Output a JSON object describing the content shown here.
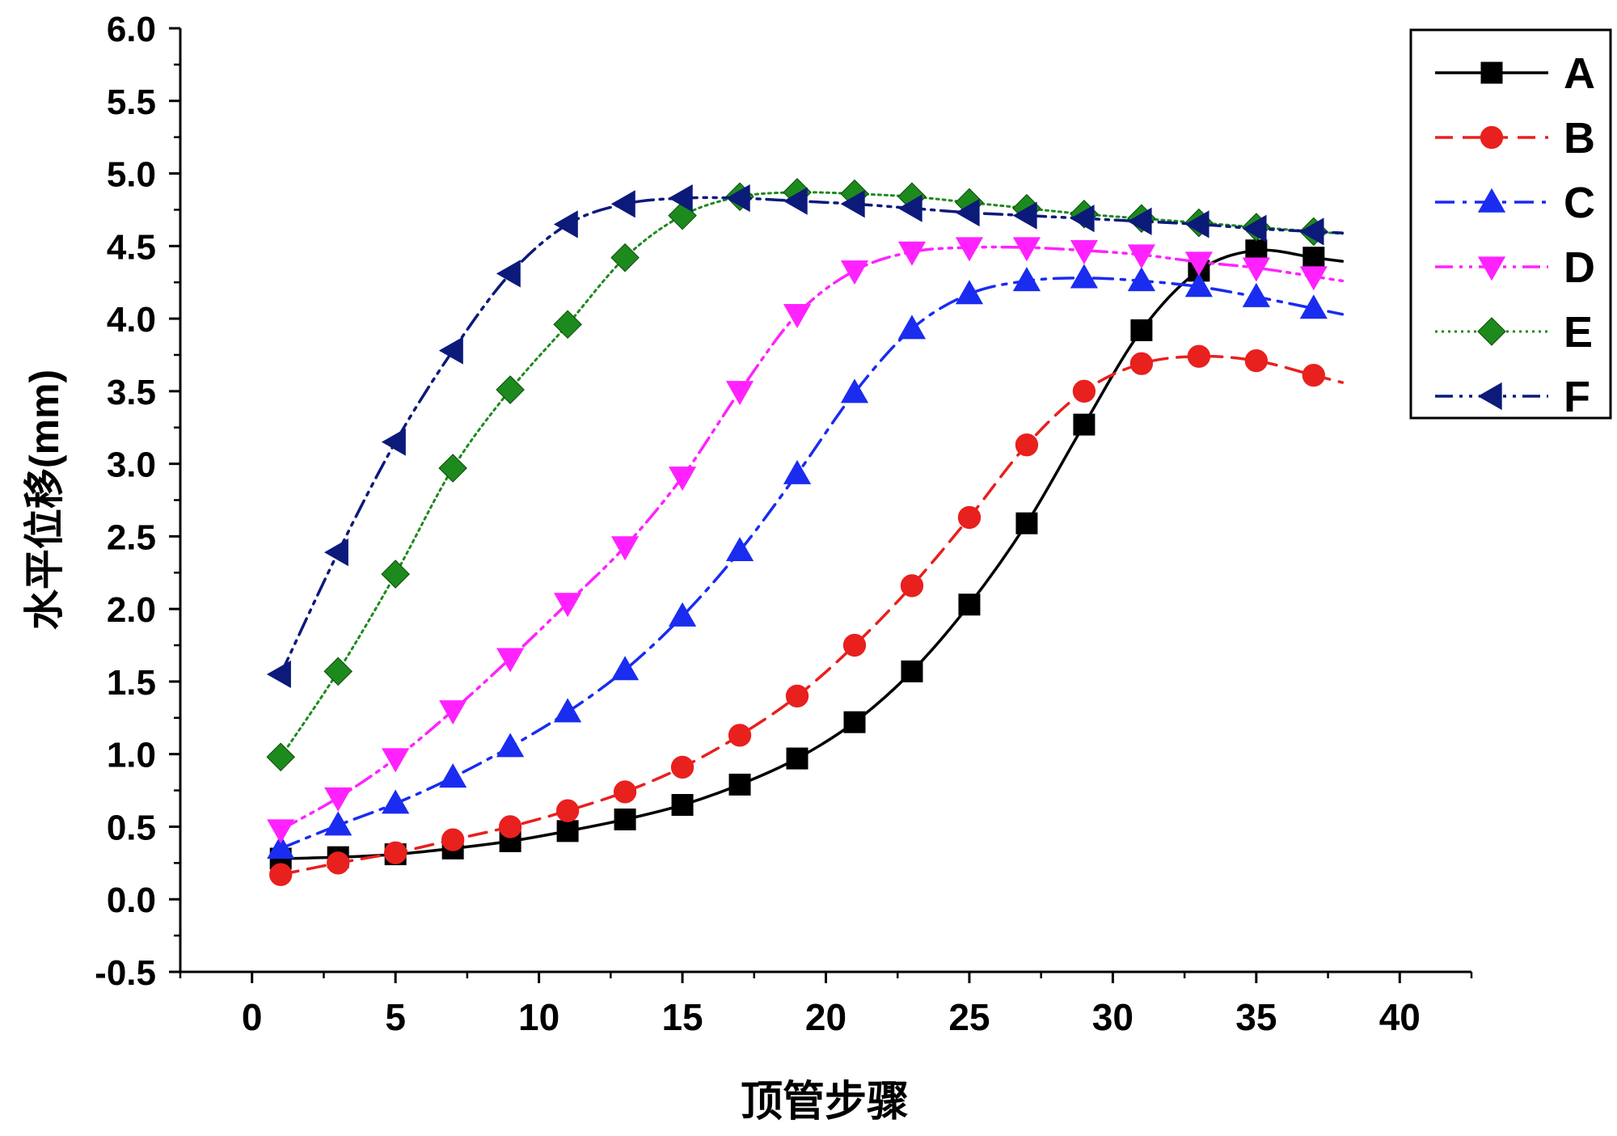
{
  "chart_data": {
    "type": "line",
    "title": "",
    "xlabel": "顶管步骤",
    "ylabel": "水平位移(mm)",
    "xlim": [
      -2.5,
      42.5
    ],
    "ylim": [
      -0.5,
      6.0
    ],
    "xticks": [
      0,
      5,
      10,
      15,
      20,
      25,
      30,
      35,
      40
    ],
    "yticks": [
      -0.5,
      0.0,
      0.5,
      1.0,
      1.5,
      2.0,
      2.5,
      3.0,
      3.5,
      4.0,
      4.5,
      5.0,
      5.5,
      6.0
    ],
    "x": [
      1,
      3,
      5,
      7,
      9,
      11,
      13,
      15,
      17,
      19,
      21,
      23,
      25,
      27,
      29,
      31,
      33,
      35,
      37
    ],
    "legend_position": "top-right",
    "series": [
      {
        "name": "A",
        "color": "#000000",
        "marker": "square",
        "dash": "solid",
        "values": [
          0.28,
          0.29,
          0.31,
          0.35,
          0.4,
          0.47,
          0.55,
          0.65,
          0.79,
          0.97,
          1.22,
          1.57,
          2.03,
          2.59,
          3.27,
          3.92,
          4.33,
          4.47,
          4.42
        ]
      },
      {
        "name": "B",
        "color": "#e8201e",
        "marker": "circle",
        "dash": "dash",
        "values": [
          0.17,
          0.25,
          0.32,
          0.41,
          0.5,
          0.61,
          0.74,
          0.91,
          1.13,
          1.4,
          1.75,
          2.16,
          2.63,
          3.13,
          3.5,
          3.69,
          3.74,
          3.71,
          3.61
        ]
      },
      {
        "name": "C",
        "color": "#1a2cf0",
        "marker": "triangle-up",
        "dash": "dashdot",
        "values": [
          0.35,
          0.51,
          0.66,
          0.84,
          1.05,
          1.29,
          1.58,
          1.95,
          2.4,
          2.93,
          3.49,
          3.93,
          4.17,
          4.26,
          4.28,
          4.26,
          4.22,
          4.15,
          4.07
        ]
      },
      {
        "name": "D",
        "color": "#ff22ff",
        "marker": "triangle-down",
        "dash": "dashdotdot",
        "values": [
          0.48,
          0.7,
          0.97,
          1.3,
          1.66,
          2.04,
          2.43,
          2.91,
          3.5,
          4.03,
          4.33,
          4.46,
          4.49,
          4.49,
          4.47,
          4.44,
          4.39,
          4.35,
          4.29
        ]
      },
      {
        "name": "E",
        "color": "#1d8a1d",
        "marker": "diamond",
        "dash": "dot",
        "values": [
          0.98,
          1.57,
          2.24,
          2.97,
          3.51,
          3.96,
          4.42,
          4.71,
          4.84,
          4.87,
          4.86,
          4.84,
          4.8,
          4.76,
          4.72,
          4.69,
          4.66,
          4.63,
          4.6
        ]
      },
      {
        "name": "F",
        "color": "#0c1a7a",
        "marker": "triangle-left",
        "dash": "dashdotdot",
        "values": [
          1.55,
          2.39,
          3.15,
          3.78,
          4.31,
          4.65,
          4.79,
          4.83,
          4.83,
          4.81,
          4.79,
          4.76,
          4.73,
          4.71,
          4.69,
          4.67,
          4.65,
          4.62,
          4.6
        ]
      }
    ]
  }
}
